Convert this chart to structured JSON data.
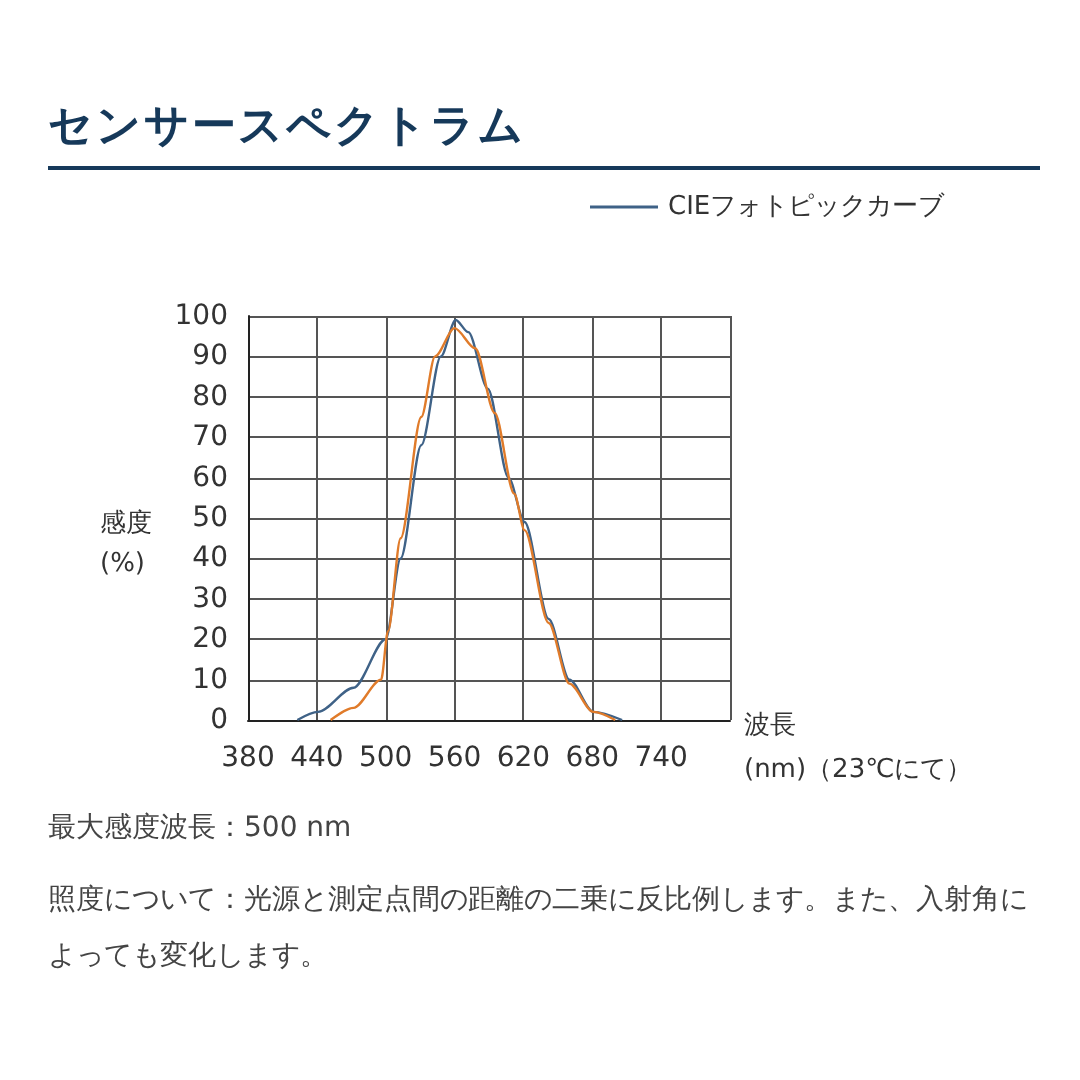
{
  "chart_data": {
    "type": "line",
    "title": "センサースペクトラム",
    "xlabel": "波長\n(nm)（23℃にて）",
    "ylabel": "感度\n(%)",
    "xlim": [
      380,
      800
    ],
    "xticks": [
      380,
      440,
      500,
      560,
      620,
      680,
      740,
      {
        "value": 800,
        "label": null
      }
    ],
    "ylim": [
      0,
      100
    ],
    "yticks": [
      0,
      10,
      20,
      30,
      40,
      50,
      60,
      70,
      80,
      90,
      100
    ],
    "grid": true,
    "legend": "top right",
    "marker": "none",
    "line_style": "solid",
    "series": [
      {
        "name": "CIEフォトピックカーブ",
        "color": "#3f6287",
        "x": [
          423,
          441,
          472,
          500,
          513,
          531,
          548,
          561,
          572,
          589,
          607,
          621,
          642,
          660,
          681,
          706
        ],
        "values": [
          0,
          2,
          8,
          20,
          40,
          68,
          90,
          99,
          96,
          82,
          60,
          49,
          25,
          10,
          2,
          0
        ]
      },
      {
        "color": "#e07b2a",
        "x": [
          452,
          472,
          496,
          502,
          513,
          531,
          543,
          560,
          578,
          595,
          612,
          621,
          642,
          660,
          681,
          700
        ],
        "values": [
          0,
          3,
          10,
          22,
          45,
          75,
          90,
          97,
          92,
          76,
          56,
          47,
          24,
          9,
          2,
          0
        ]
      }
    ],
    "annotations": [
      "最大感度波長：500 nm",
      "照度について：光源と測定点間の距離の二乗に反比例します。また、入射角によっても変化します。"
    ]
  }
}
